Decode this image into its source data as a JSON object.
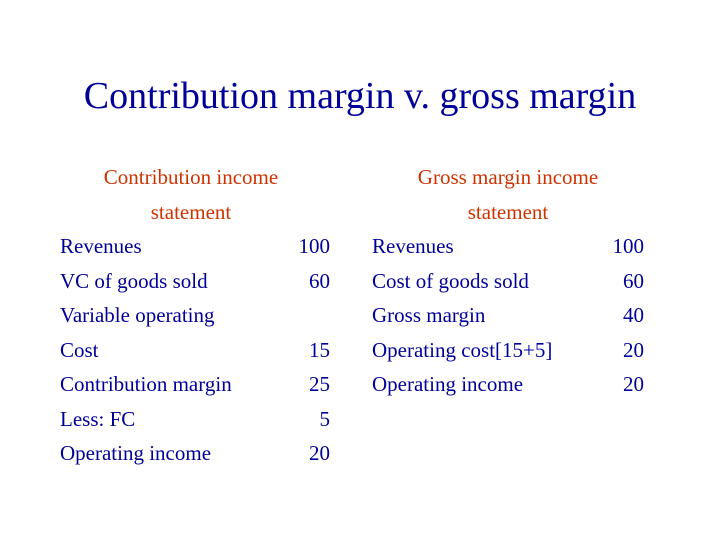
{
  "title": "Contribution margin v. gross margin",
  "contribution": {
    "heading_line1": "Contribution income",
    "heading_line2": "statement",
    "rows": [
      {
        "label": "Revenues",
        "value": "100"
      },
      {
        "label": "VC of goods sold",
        "value": "60"
      },
      {
        "label": "Variable operating",
        "value": ""
      },
      {
        "label": "Cost",
        "value": "15"
      },
      {
        "label": "Contribution margin",
        "value": "25"
      },
      {
        "label": "Less: FC",
        "value": "5"
      },
      {
        "label": "Operating income",
        "value": "20"
      }
    ]
  },
  "gross": {
    "heading_line1": "Gross margin income",
    "heading_line2": "statement",
    "rows": [
      {
        "label": "Revenues",
        "value": "100"
      },
      {
        "label": "Cost of goods sold",
        "value": "60"
      },
      {
        "label": "Gross margin",
        "value": "40"
      },
      {
        "label": "Operating cost[15+5]",
        "value": "20"
      },
      {
        "label": "Operating income",
        "value": "20"
      }
    ]
  },
  "colors": {
    "text": "#000099",
    "heading": "#cc3300"
  }
}
